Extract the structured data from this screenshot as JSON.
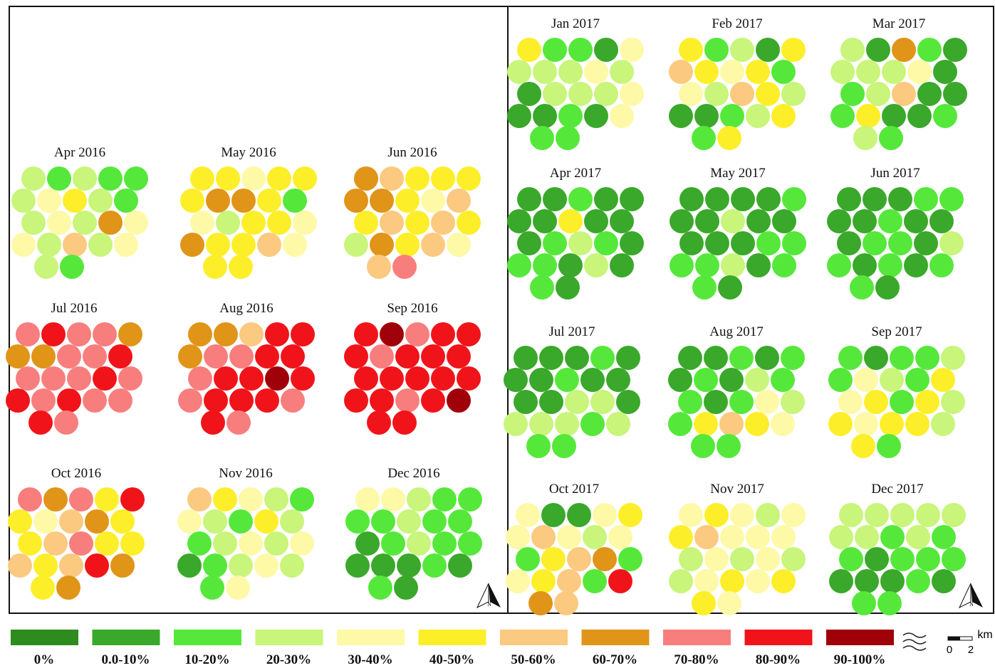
{
  "panels": [
    {
      "label": "Apr 2016",
      "classes": [
        3,
        2,
        3,
        2,
        2,
        3,
        4,
        5,
        3,
        2,
        3,
        4,
        3,
        7,
        4,
        4,
        3,
        6,
        3,
        4,
        3,
        2
      ]
    },
    {
      "label": "May 2016",
      "classes": [
        5,
        5,
        4,
        5,
        5,
        5,
        7,
        7,
        5,
        2,
        4,
        3,
        5,
        5,
        4,
        7,
        5,
        5,
        6,
        4,
        5,
        5
      ]
    },
    {
      "label": "Jun 2016",
      "classes": [
        7,
        6,
        5,
        5,
        5,
        7,
        7,
        5,
        4,
        6,
        5,
        6,
        5,
        6,
        5,
        3,
        7,
        5,
        6,
        4,
        6,
        8
      ]
    },
    {
      "label": "Jul 2016",
      "classes": [
        8,
        9,
        8,
        8,
        7,
        7,
        7,
        8,
        8,
        9,
        8,
        8,
        8,
        9,
        8,
        9,
        8,
        9,
        8,
        8,
        9,
        8
      ]
    },
    {
      "label": "Aug 2016",
      "classes": [
        7,
        7,
        6,
        9,
        9,
        7,
        8,
        8,
        9,
        9,
        8,
        9,
        9,
        10,
        9,
        8,
        9,
        9,
        9,
        8,
        9,
        8
      ]
    },
    {
      "label": "Sep 2016",
      "classes": [
        9,
        10,
        8,
        9,
        9,
        9,
        8,
        9,
        9,
        9,
        9,
        9,
        9,
        9,
        9,
        9,
        9,
        8,
        9,
        10,
        9,
        9
      ]
    },
    {
      "label": "Oct 2016",
      "classes": [
        8,
        7,
        8,
        5,
        9,
        5,
        4,
        6,
        7,
        5,
        5,
        6,
        8,
        5,
        5,
        6,
        5,
        6,
        9,
        7,
        5,
        7
      ]
    },
    {
      "label": "Nov 2016",
      "classes": [
        6,
        5,
        4,
        3,
        2,
        4,
        3,
        2,
        5,
        3,
        2,
        3,
        4,
        3,
        4,
        1,
        2,
        3,
        4,
        3,
        2,
        4
      ]
    },
    {
      "label": "Dec 2016",
      "classes": [
        4,
        4,
        3,
        2,
        2,
        2,
        2,
        3,
        2,
        2,
        1,
        2,
        3,
        2,
        2,
        1,
        1,
        1,
        2,
        1,
        2,
        1
      ]
    },
    {
      "label": "Jan 2017",
      "classes": [
        5,
        2,
        2,
        1,
        4,
        3,
        3,
        3,
        4,
        3,
        1,
        3,
        3,
        3,
        4,
        1,
        1,
        2,
        1,
        4,
        2,
        2
      ]
    },
    {
      "label": "Feb 2017",
      "classes": [
        5,
        2,
        3,
        1,
        5,
        6,
        5,
        4,
        5,
        2,
        4,
        3,
        6,
        5,
        3,
        1,
        1,
        2,
        3,
        5,
        2,
        5
      ]
    },
    {
      "label": "Mar 2017",
      "classes": [
        3,
        1,
        7,
        2,
        1,
        3,
        3,
        3,
        4,
        1,
        2,
        3,
        6,
        1,
        1,
        2,
        5,
        1,
        1,
        2,
        3,
        2
      ]
    },
    {
      "label": "Apr 2017",
      "classes": [
        1,
        1,
        2,
        1,
        1,
        1,
        1,
        5,
        1,
        1,
        1,
        2,
        3,
        2,
        1,
        2,
        2,
        1,
        3,
        1,
        2,
        1
      ]
    },
    {
      "label": "May 2017",
      "classes": [
        1,
        1,
        1,
        1,
        2,
        1,
        1,
        3,
        1,
        1,
        1,
        1,
        1,
        2,
        2,
        2,
        2,
        3,
        1,
        2,
        2,
        1
      ]
    },
    {
      "label": "Jun 2017",
      "classes": [
        1,
        1,
        1,
        2,
        2,
        1,
        1,
        2,
        1,
        1,
        1,
        2,
        2,
        1,
        3,
        2,
        1,
        2,
        1,
        2,
        2,
        1
      ]
    },
    {
      "label": "Jul 2017",
      "classes": [
        1,
        1,
        1,
        2,
        1,
        1,
        1,
        2,
        1,
        1,
        1,
        1,
        3,
        3,
        1,
        3,
        3,
        3,
        2,
        3,
        2,
        2
      ]
    },
    {
      "label": "Aug 2017",
      "classes": [
        1,
        1,
        2,
        1,
        2,
        1,
        2,
        1,
        3,
        2,
        2,
        1,
        2,
        4,
        3,
        2,
        5,
        6,
        5,
        4,
        2,
        2
      ]
    },
    {
      "label": "Sep 2017",
      "classes": [
        2,
        1,
        2,
        2,
        3,
        2,
        4,
        3,
        2,
        5,
        4,
        5,
        2,
        5,
        3,
        5,
        4,
        5,
        5,
        3,
        5,
        2
      ]
    },
    {
      "label": "Oct 2017",
      "classes": [
        4,
        1,
        1,
        4,
        5,
        4,
        6,
        4,
        3,
        4,
        2,
        5,
        6,
        7,
        2,
        4,
        5,
        6,
        2,
        9,
        7,
        6
      ]
    },
    {
      "label": "Nov 2017",
      "classes": [
        4,
        5,
        4,
        3,
        4,
        5,
        6,
        4,
        4,
        4,
        3,
        4,
        3,
        4,
        3,
        3,
        4,
        5,
        4,
        5,
        5,
        4
      ]
    },
    {
      "label": "Dec 2017",
      "classes": [
        3,
        3,
        3,
        3,
        3,
        3,
        3,
        2,
        3,
        2,
        2,
        1,
        2,
        2,
        2,
        1,
        1,
        1,
        2,
        1,
        2,
        2
      ]
    }
  ],
  "legend": [
    {
      "label": "0%",
      "color": "#2e8b1e"
    },
    {
      "label": "0.0-10%",
      "color": "#3aa82a"
    },
    {
      "label": "10-20%",
      "color": "#55e83a"
    },
    {
      "label": "20-30%",
      "color": "#c8f57a"
    },
    {
      "label": "30-40%",
      "color": "#fdf9a6"
    },
    {
      "label": "40-50%",
      "color": "#fdee2a"
    },
    {
      "label": "50-60%",
      "color": "#fbc97f"
    },
    {
      "label": "60-70%",
      "color": "#e09418"
    },
    {
      "label": "70-80%",
      "color": "#f87e7e"
    },
    {
      "label": "80-90%",
      "color": "#f0141a"
    },
    {
      "label": "90-100%",
      "color": "#a0000a"
    }
  ],
  "scale": {
    "unit": "km",
    "start": "0",
    "end": "2"
  },
  "north": "N"
}
